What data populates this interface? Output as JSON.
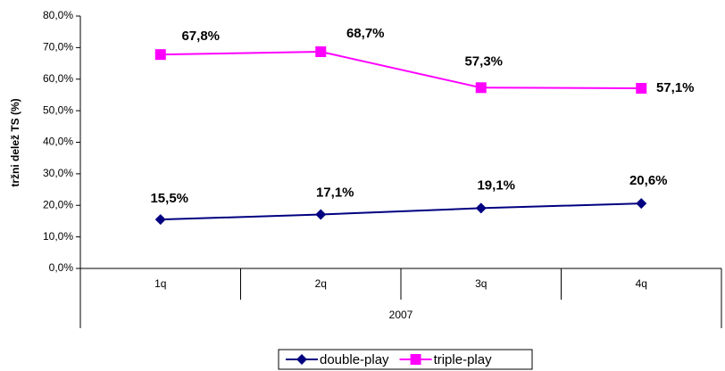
{
  "chart_data": {
    "type": "line",
    "y_label": "tržni delež TS (%)",
    "categories": [
      "1q",
      "2q",
      "3q",
      "4q"
    ],
    "group_label": "2007",
    "series": [
      {
        "name": "double-play",
        "color": "#000080",
        "marker": "diamond",
        "values": [
          15.5,
          17.1,
          19.1,
          20.6
        ],
        "value_labels": [
          "15,5%",
          "17,1%",
          "19,1%",
          "20,6%"
        ]
      },
      {
        "name": "triple-play",
        "color": "#ff00ff",
        "marker": "square",
        "values": [
          67.8,
          68.7,
          57.3,
          57.1
        ],
        "value_labels": [
          "67,8%",
          "68,7%",
          "57,3%",
          "57,1%"
        ]
      }
    ],
    "ylim": [
      0,
      80
    ],
    "yticks": [
      {
        "value": 0,
        "label": "0,0%"
      },
      {
        "value": 10,
        "label": "10,0%"
      },
      {
        "value": 20,
        "label": "20,0%"
      },
      {
        "value": 30,
        "label": "30,0%"
      },
      {
        "value": 40,
        "label": "40,0%"
      },
      {
        "value": 50,
        "label": "50,0%"
      },
      {
        "value": 60,
        "label": "60,0%"
      },
      {
        "value": 70,
        "label": "70,0%"
      },
      {
        "value": 80,
        "label": "80,0%"
      }
    ],
    "grid": false,
    "legend": "bottom"
  }
}
